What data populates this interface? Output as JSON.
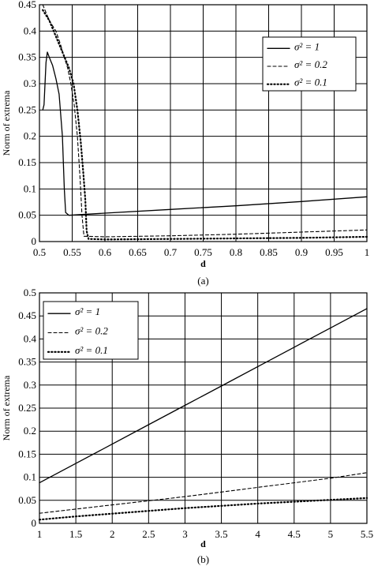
{
  "chart_data": [
    {
      "type": "line",
      "caption": "(a)",
      "xlabel": "d",
      "ylabel": "Norm of extrema",
      "xlim": [
        0.5,
        1.0
      ],
      "ylim": [
        0,
        0.45
      ],
      "xticks": [
        0.5,
        0.55,
        0.6,
        0.65,
        0.7,
        0.75,
        0.8,
        0.85,
        0.9,
        0.95,
        1
      ],
      "xtick_labels": [
        "0.5",
        "0.55",
        "0.6",
        "0.65",
        "0.7",
        "0.75",
        "0.8",
        "0.85",
        "0.9",
        "0.95",
        "1"
      ],
      "yticks": [
        0,
        0.05,
        0.1,
        0.15,
        0.2,
        0.25,
        0.3,
        0.35,
        0.4,
        0.45
      ],
      "ytick_labels": [
        "0",
        "0.05",
        "0.1",
        "0.15",
        "0.2",
        "0.25",
        "0.3",
        "0.35",
        "0.4",
        "0.45"
      ],
      "grid": true,
      "legend_position": "top-right",
      "series": [
        {
          "label": "σ² = 1",
          "style": "solid",
          "color": "#000000",
          "points": [
            [
              0.505,
              0.25
            ],
            [
              0.507,
              0.26
            ],
            [
              0.51,
              0.34
            ],
            [
              0.512,
              0.36
            ],
            [
              0.515,
              0.35
            ],
            [
              0.52,
              0.335
            ],
            [
              0.525,
              0.31
            ],
            [
              0.53,
              0.28
            ],
            [
              0.535,
              0.2
            ],
            [
              0.538,
              0.1
            ],
            [
              0.54,
              0.055
            ],
            [
              0.545,
              0.05
            ],
            [
              0.6,
              0.054
            ],
            [
              0.7,
              0.061
            ],
            [
              0.8,
              0.068
            ],
            [
              0.9,
              0.076
            ],
            [
              1.0,
              0.085
            ]
          ]
        },
        {
          "label": "σ² = 0.2",
          "style": "dashed",
          "color": "#000000",
          "points": [
            [
              0.505,
              0.45
            ],
            [
              0.515,
              0.42
            ],
            [
              0.525,
              0.4
            ],
            [
              0.532,
              0.375
            ],
            [
              0.538,
              0.35
            ],
            [
              0.543,
              0.33
            ],
            [
              0.548,
              0.3
            ],
            [
              0.553,
              0.26
            ],
            [
              0.558,
              0.2
            ],
            [
              0.562,
              0.12
            ],
            [
              0.565,
              0.05
            ],
            [
              0.568,
              0.01
            ],
            [
              0.6,
              0.009
            ],
            [
              0.7,
              0.011
            ],
            [
              0.8,
              0.014
            ],
            [
              0.9,
              0.018
            ],
            [
              1.0,
              0.022
            ]
          ]
        },
        {
          "label": "σ² = 0.1",
          "style": "dotted",
          "color": "#000000",
          "points": [
            [
              0.505,
              0.44
            ],
            [
              0.515,
              0.42
            ],
            [
              0.525,
              0.39
            ],
            [
              0.535,
              0.36
            ],
            [
              0.545,
              0.33
            ],
            [
              0.552,
              0.3
            ],
            [
              0.558,
              0.25
            ],
            [
              0.563,
              0.19
            ],
            [
              0.567,
              0.13
            ],
            [
              0.57,
              0.08
            ],
            [
              0.572,
              0.02
            ],
            [
              0.575,
              0.005
            ],
            [
              0.6,
              0.004
            ],
            [
              0.7,
              0.005
            ],
            [
              0.8,
              0.006
            ],
            [
              0.9,
              0.007
            ],
            [
              1.0,
              0.009
            ]
          ]
        }
      ]
    },
    {
      "type": "line",
      "caption": "(b)",
      "xlabel": "d",
      "ylabel": "Norm of extrema",
      "xlim": [
        1,
        5.5
      ],
      "ylim": [
        0,
        0.5
      ],
      "xticks": [
        1,
        1.5,
        2,
        2.5,
        3,
        3.5,
        4,
        4.5,
        5,
        5.5
      ],
      "xtick_labels": [
        "1",
        "1.5",
        "2",
        "2.5",
        "3",
        "3.5",
        "4",
        "4.5",
        "5",
        "5.5"
      ],
      "yticks": [
        0,
        0.05,
        0.1,
        0.15,
        0.2,
        0.25,
        0.3,
        0.35,
        0.4,
        0.45,
        0.5
      ],
      "ytick_labels": [
        "0",
        "0.05",
        "0.1",
        "0.15",
        "0.2",
        "0.25",
        "0.3",
        "0.35",
        "0.4",
        "0.45",
        "0.5"
      ],
      "grid": true,
      "legend_position": "top-left",
      "series": [
        {
          "label": "σ² = 1",
          "style": "solid",
          "color": "#000000",
          "points": [
            [
              1,
              0.088
            ],
            [
              1.5,
              0.13
            ],
            [
              2,
              0.172
            ],
            [
              2.5,
              0.214
            ],
            [
              3,
              0.256
            ],
            [
              3.5,
              0.298
            ],
            [
              4,
              0.34
            ],
            [
              4.5,
              0.382
            ],
            [
              5,
              0.424
            ],
            [
              5.5,
              0.466
            ]
          ]
        },
        {
          "label": "σ² = 0.2",
          "style": "dashed",
          "color": "#000000",
          "points": [
            [
              1,
              0.022
            ],
            [
              1.5,
              0.031
            ],
            [
              2,
              0.04
            ],
            [
              2.5,
              0.049
            ],
            [
              3,
              0.058
            ],
            [
              3.5,
              0.068
            ],
            [
              4,
              0.078
            ],
            [
              4.5,
              0.088
            ],
            [
              5,
              0.098
            ],
            [
              5.5,
              0.11
            ]
          ]
        },
        {
          "label": "σ² = 0.1",
          "style": "dotted",
          "color": "#000000",
          "points": [
            [
              1,
              0.008
            ],
            [
              1.5,
              0.015
            ],
            [
              2,
              0.021
            ],
            [
              2.5,
              0.027
            ],
            [
              3,
              0.033
            ],
            [
              3.5,
              0.038
            ],
            [
              4,
              0.043
            ],
            [
              4.5,
              0.047
            ],
            [
              5,
              0.051
            ],
            [
              5.5,
              0.055
            ]
          ]
        }
      ]
    }
  ]
}
